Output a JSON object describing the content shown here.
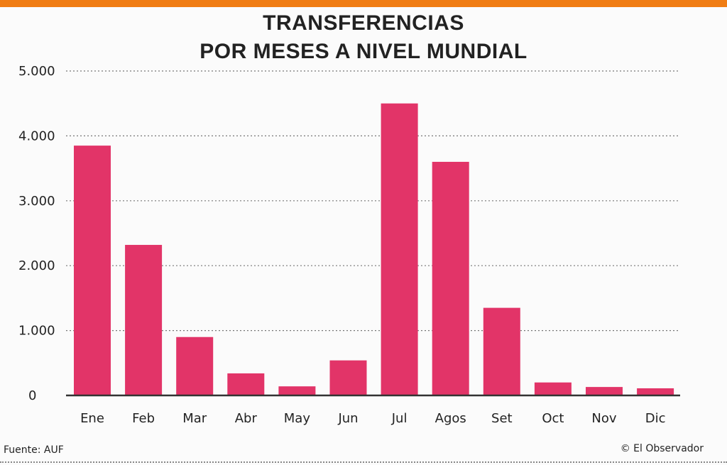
{
  "header": {
    "title_line1": "TRANSFERENCIAS",
    "title_line2": "POR MESES A NIVEL MUNDIAL"
  },
  "chart_data": {
    "type": "bar",
    "title": "TRANSFERENCIAS POR MESES A NIVEL MUNDIAL",
    "categories": [
      "Ene",
      "Feb",
      "Mar",
      "Abr",
      "May",
      "Jun",
      "Jul",
      "Agos",
      "Set",
      "Oct",
      "Nov",
      "Dic"
    ],
    "values": [
      3850,
      2320,
      900,
      340,
      140,
      540,
      4500,
      3600,
      1350,
      200,
      130,
      110
    ],
    "ylim": [
      0,
      5000
    ],
    "yticks": [
      0,
      1000,
      2000,
      3000,
      4000,
      5000
    ],
    "ytick_labels": [
      "0",
      "1.000",
      "2.000",
      "3.000",
      "4.000",
      "5.000"
    ],
    "xlabel": "",
    "ylabel": "",
    "grid": true,
    "bar_color": "#e23468"
  },
  "footer": {
    "source": "Fuente:  AUF",
    "credit": "© El Observador"
  },
  "colors": {
    "accent": "#f07d14",
    "bar": "#e23468"
  }
}
